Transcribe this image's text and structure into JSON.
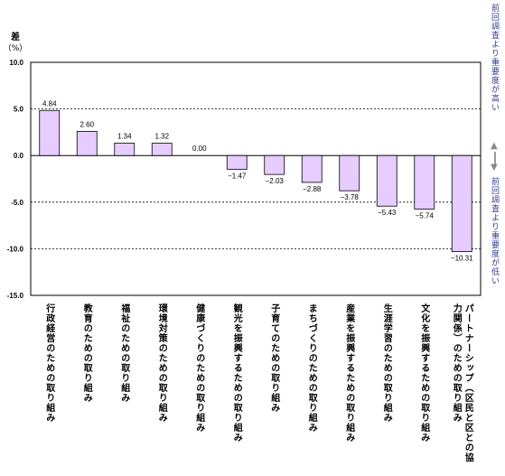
{
  "chart_data": {
    "type": "bar",
    "ylabel": "差",
    "yunit": "（%）",
    "ylim": [
      -15.0,
      10.0
    ],
    "yticks": [
      "10.0",
      "5.0",
      "0.0",
      "-5.0",
      "-10.0",
      "-15.0"
    ],
    "gridlines": [
      5.0,
      -5.0,
      -10.0
    ],
    "bar_color": "#e6ccff",
    "bar_edge": "#000000",
    "categories": [
      "行政経営のための取り組み",
      "教育のための取り組み",
      "福祉のための取り組み",
      "環境対策のための取り組み",
      "健康づくりのための取り組み",
      "観光を振興するための取り組み",
      "子育てのための取り組み",
      "まちづくりのための取り組み",
      "産業を振興するための取り組み",
      "生涯学習のための取り組み",
      "文化を振興するための取り組み",
      "パートナーシップ（区民と区との協力関係）のための取り組み"
    ],
    "values": [
      4.84,
      2.6,
      1.34,
      1.32,
      0.0,
      -1.47,
      -2.03,
      -2.88,
      -3.78,
      -5.43,
      -5.74,
      -10.31
    ],
    "value_labels": [
      "4.84",
      "2.60",
      "1.34",
      "1.32",
      "0.00",
      "−1.47",
      "−2.03",
      "−2.88",
      "−3.78",
      "−5.43",
      "−5.74",
      "−10.31"
    ]
  },
  "annotations": {
    "upper": "前回調査より重要度が高い",
    "lower": "前回調査より重要度が低い"
  }
}
